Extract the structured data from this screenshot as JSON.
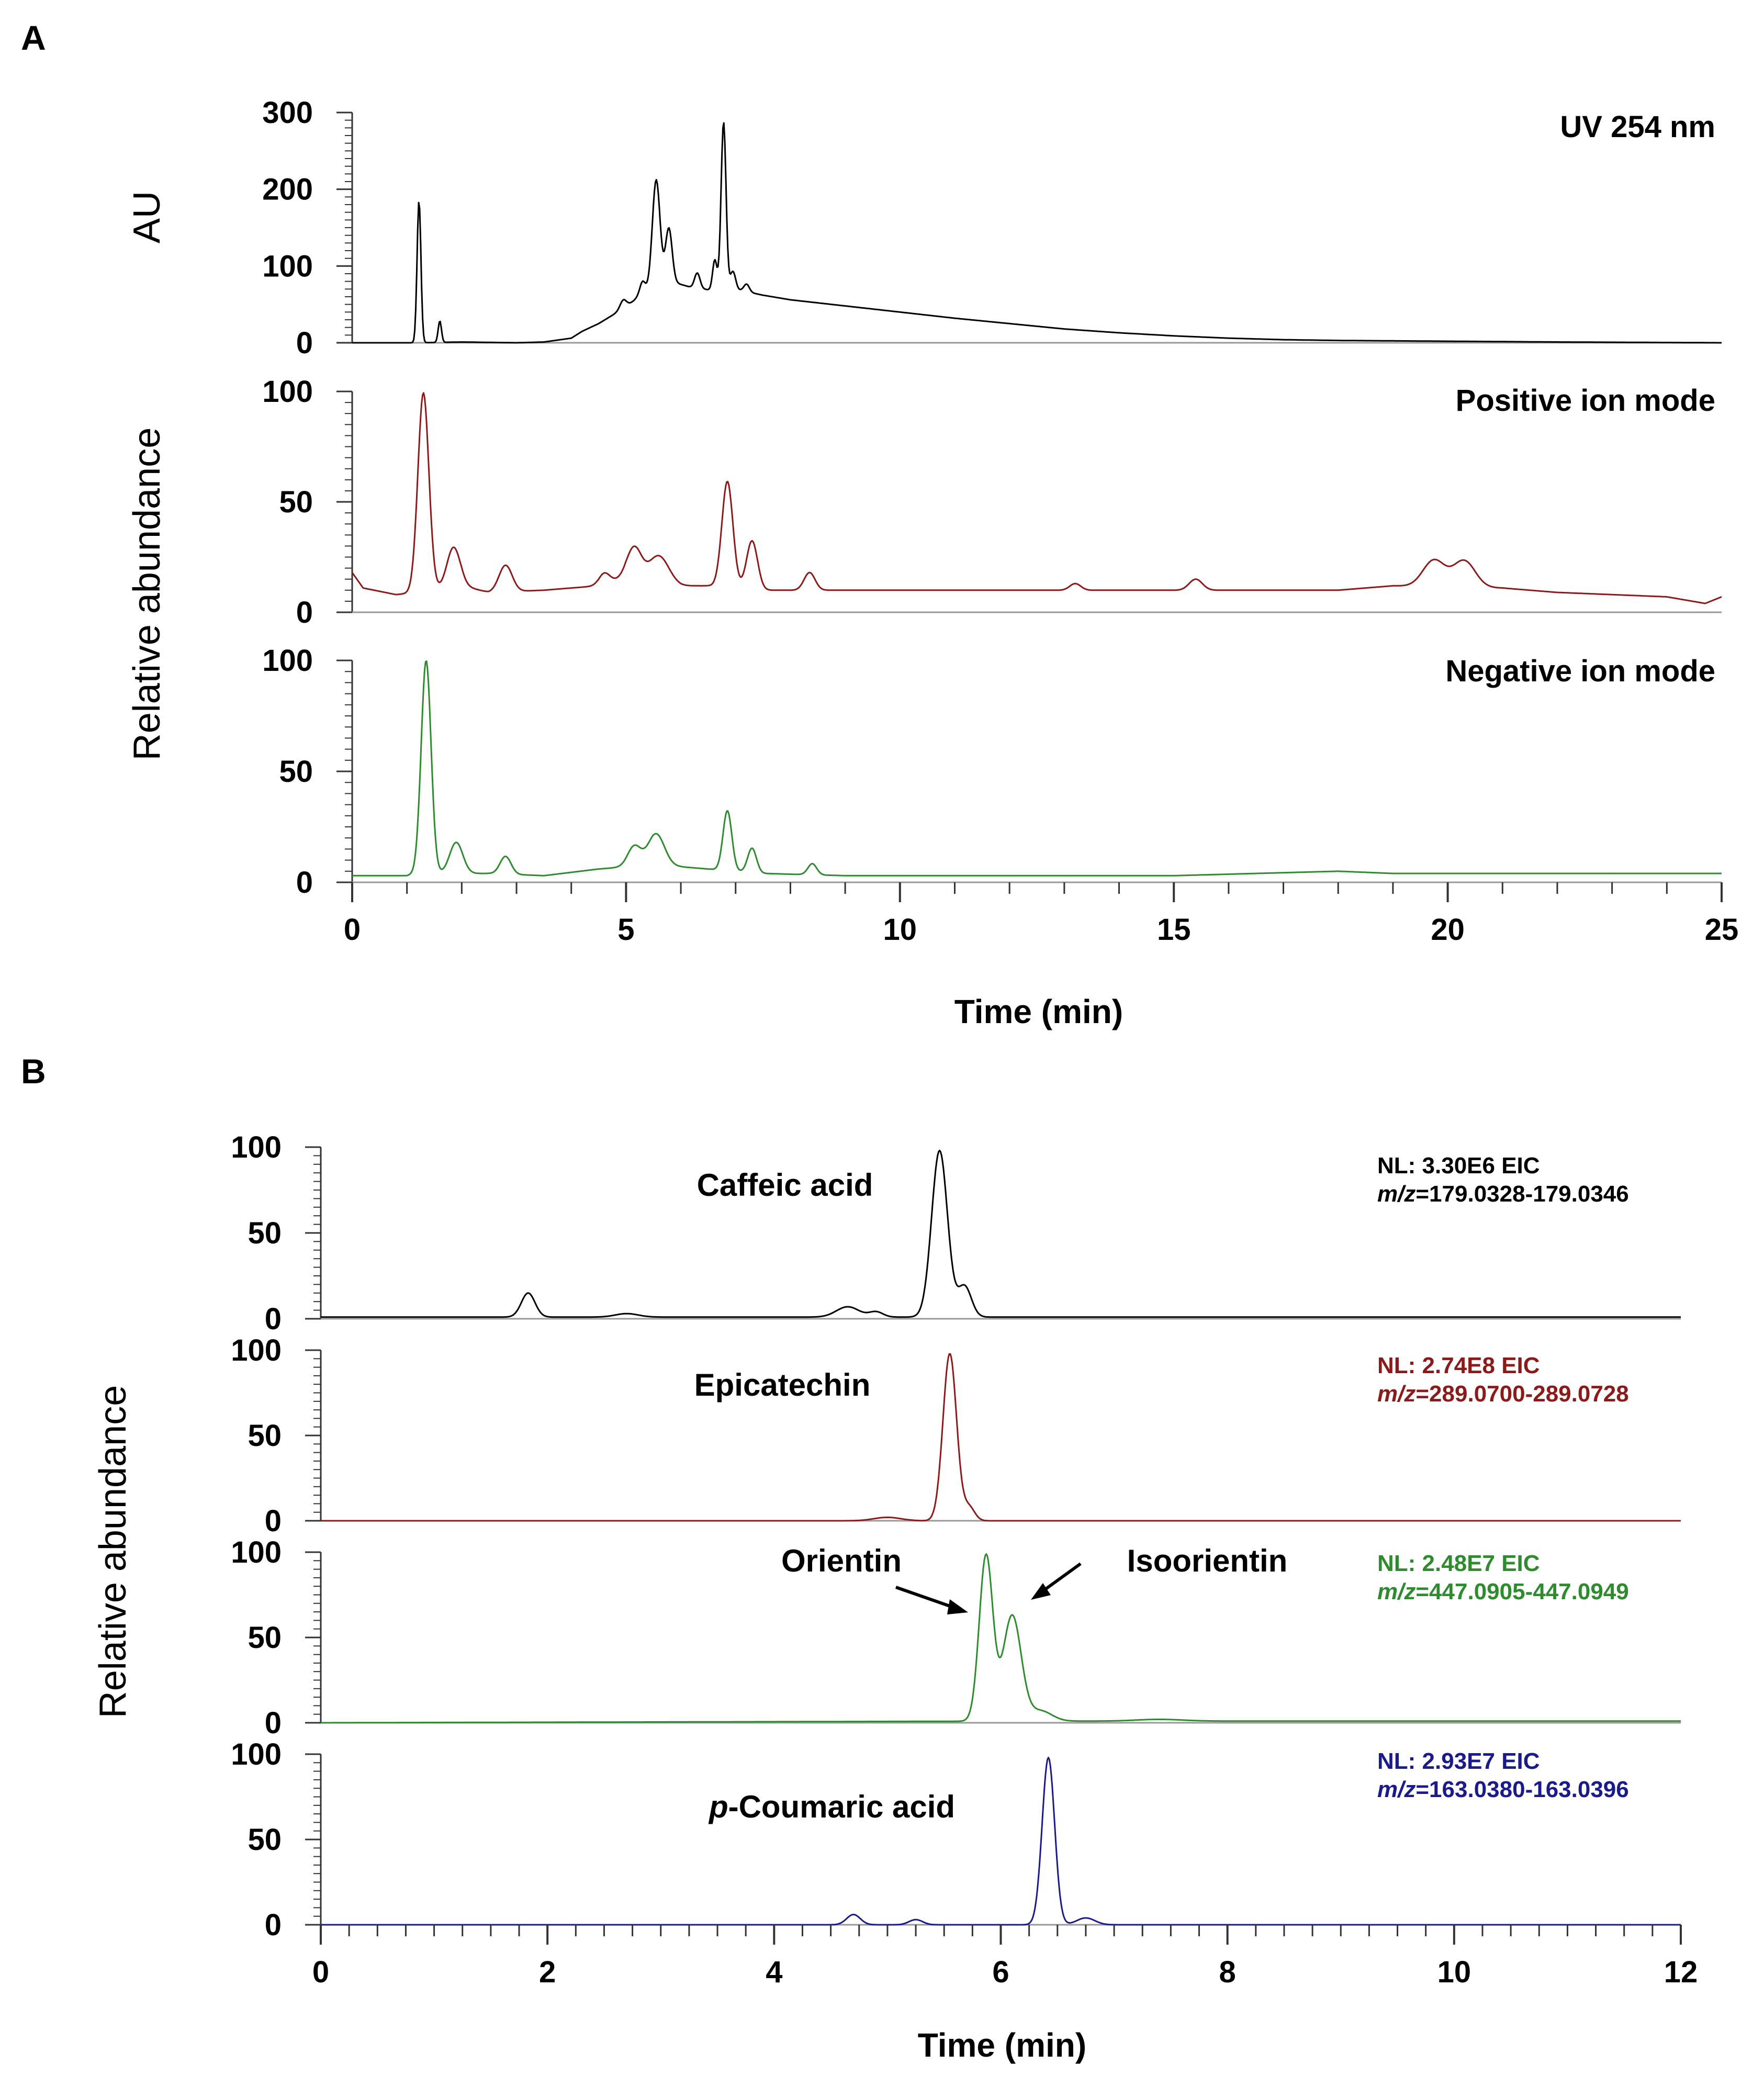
{
  "chart_data": [
    {
      "type": "line",
      "panel_label": "A",
      "xlabel": "Time (min)",
      "xlim": [
        0,
        25
      ],
      "x_ticks": [
        "0",
        "5",
        "10",
        "15",
        "20",
        "25"
      ],
      "subplots": [
        {
          "ylabel": "AU",
          "ylim": [
            0,
            300
          ],
          "y_ticks": [
            "0",
            "100",
            "200",
            "300"
          ],
          "label": "UV 254 nm",
          "color": "#000000",
          "baseline": [
            [
              0,
              0
            ],
            [
              1.15,
              0
            ],
            [
              2,
              1
            ],
            [
              3,
              0
            ],
            [
              3.5,
              1
            ],
            [
              4,
              6
            ],
            [
              4.2,
              15
            ],
            [
              4.5,
              25
            ],
            [
              4.8,
              38
            ],
            [
              5.0,
              46
            ],
            [
              5.3,
              65
            ],
            [
              5.8,
              80
            ],
            [
              6.2,
              72
            ],
            [
              6.6,
              68
            ],
            [
              7.1,
              68
            ],
            [
              7.5,
              62
            ],
            [
              8,
              56
            ],
            [
              9,
              48
            ],
            [
              10,
              40
            ],
            [
              11,
              32
            ],
            [
              12,
              25
            ],
            [
              13,
              18
            ],
            [
              14,
              13
            ],
            [
              15,
              9
            ],
            [
              16,
              6
            ],
            [
              17,
              4
            ],
            [
              18,
              3
            ],
            [
              20,
              2
            ],
            [
              22,
              1
            ],
            [
              25,
              0
            ]
          ],
          "peaks": [
            [
              1.22,
              185,
              0.035
            ],
            [
              1.6,
              28,
              0.03
            ],
            [
              4.95,
              12,
              0.06
            ],
            [
              5.3,
              15,
              0.05
            ],
            [
              5.55,
              140,
              0.07
            ],
            [
              5.78,
              70,
              0.06
            ],
            [
              6.3,
              20,
              0.05
            ],
            [
              6.62,
              40,
              0.04
            ],
            [
              6.78,
              220,
              0.045
            ],
            [
              6.95,
              25,
              0.05
            ],
            [
              7.2,
              10,
              0.05
            ]
          ]
        },
        {
          "ylabel": "Relative abundance",
          "ylim": [
            0,
            100
          ],
          "y_ticks": [
            "0",
            "50",
            "100"
          ],
          "label": "Positive ion mode",
          "color": "#8b1a1a",
          "baseline": [
            [
              0,
              18
            ],
            [
              0.2,
              11
            ],
            [
              0.8,
              8
            ],
            [
              1.2,
              9
            ],
            [
              2,
              12
            ],
            [
              2.5,
              9
            ],
            [
              3.5,
              10
            ],
            [
              4.5,
              12
            ],
            [
              5,
              16
            ],
            [
              6,
              12
            ],
            [
              6.5,
              12
            ],
            [
              7.5,
              10
            ],
            [
              9,
              10
            ],
            [
              12,
              10
            ],
            [
              15,
              10
            ],
            [
              18,
              10
            ],
            [
              19,
              12
            ],
            [
              21,
              11
            ],
            [
              22,
              9
            ],
            [
              23,
              8
            ],
            [
              24,
              7
            ],
            [
              24.7,
              4
            ],
            [
              25,
              7
            ]
          ],
          "peaks": [
            [
              1.3,
              90,
              0.1
            ],
            [
              1.85,
              18,
              0.12
            ],
            [
              2.8,
              12,
              0.12
            ],
            [
              4.6,
              5,
              0.1
            ],
            [
              5.15,
              14,
              0.13
            ],
            [
              5.6,
              12,
              0.18
            ],
            [
              6.85,
              48,
              0.1
            ],
            [
              7.3,
              22,
              0.1
            ],
            [
              8.35,
              8,
              0.1
            ],
            [
              13.2,
              3,
              0.1
            ],
            [
              15.4,
              5,
              0.12
            ],
            [
              19.75,
              12,
              0.2
            ],
            [
              20.3,
              12,
              0.2
            ]
          ]
        },
        {
          "ylabel": "Relative abundance",
          "ylim": [
            0,
            100
          ],
          "y_ticks": [
            "0",
            "50",
            "100"
          ],
          "label": "Negative ion mode",
          "color": "#2e8b2e",
          "baseline": [
            [
              0,
              3
            ],
            [
              1.0,
              3
            ],
            [
              1.2,
              4
            ],
            [
              2.5,
              4
            ],
            [
              3.5,
              3
            ],
            [
              4.5,
              6
            ],
            [
              5.5,
              8
            ],
            [
              6.5,
              6
            ],
            [
              7.5,
              4
            ],
            [
              9,
              3
            ],
            [
              15,
              3
            ],
            [
              18,
              5
            ],
            [
              19,
              4
            ],
            [
              25,
              4
            ]
          ],
          "peaks": [
            [
              1.35,
              96,
              0.09
            ],
            [
              1.9,
              14,
              0.12
            ],
            [
              2.8,
              8,
              0.1
            ],
            [
              5.15,
              9,
              0.12
            ],
            [
              5.55,
              14,
              0.15
            ],
            [
              6.85,
              27,
              0.08
            ],
            [
              7.3,
              11,
              0.08
            ],
            [
              8.4,
              5,
              0.08
            ]
          ]
        }
      ]
    },
    {
      "type": "line",
      "panel_label": "B",
      "ylabel": "Relative abundance",
      "xlabel": "Time (min)",
      "xlim": [
        0,
        12
      ],
      "x_ticks": [
        "0",
        "2",
        "4",
        "6",
        "8",
        "10",
        "12"
      ],
      "subplots": [
        {
          "ylim": [
            0,
            100
          ],
          "y_ticks": [
            "0",
            "50",
            "100"
          ],
          "compound": "Caffeic acid",
          "nl_text": "NL: 3.30E6 EIC",
          "mz_prefix": "m/z",
          "mz_value": "=179.0328-179.0346",
          "color": "#000000",
          "baseline": [
            [
              0,
              1
            ],
            [
              12,
              1
            ]
          ],
          "peaks": [
            [
              1.83,
              14,
              0.06
            ],
            [
              2.7,
              2,
              0.1
            ],
            [
              4.65,
              6,
              0.1
            ],
            [
              4.9,
              3,
              0.06
            ],
            [
              5.46,
              97,
              0.07
            ],
            [
              5.68,
              18,
              0.06
            ]
          ]
        },
        {
          "ylim": [
            0,
            100
          ],
          "y_ticks": [
            "0",
            "50",
            "100"
          ],
          "compound": "Epicatechin",
          "nl_text": "NL: 2.74E8 EIC",
          "mz_prefix": "m/z",
          "mz_value": "=289.0700-289.0728",
          "color": "#8b1a1a",
          "baseline": [
            [
              0,
              0
            ],
            [
              12,
              0
            ]
          ],
          "peaks": [
            [
              5.0,
              2,
              0.12
            ],
            [
              5.55,
              98,
              0.06
            ],
            [
              5.72,
              8,
              0.05
            ]
          ]
        },
        {
          "ylim": [
            0,
            100
          ],
          "y_ticks": [
            "0",
            "50",
            "100"
          ],
          "compound": "Orientin",
          "compound2": "Isoorientin",
          "nl_text": "NL: 2.48E7 EIC",
          "mz_prefix": "m/z",
          "mz_value": "=447.0905-447.0949",
          "color": "#2e8b2e",
          "baseline": [
            [
              0,
              0
            ],
            [
              6.4,
              1
            ],
            [
              12,
              1
            ]
          ],
          "peaks": [
            [
              5.87,
              97,
              0.06
            ],
            [
              6.1,
              62,
              0.08
            ],
            [
              6.35,
              6,
              0.1
            ],
            [
              7.4,
              1,
              0.2
            ]
          ]
        },
        {
          "ylim": [
            0,
            100
          ],
          "y_ticks": [
            "0",
            "50",
            "100"
          ],
          "compound_prefix": "p",
          "compound": "-Coumaric acid",
          "nl_text": "NL: 2.93E7 EIC",
          "mz_prefix": "m/z",
          "mz_value": "=163.0380-163.0396",
          "color": "#1a1a8b",
          "baseline": [
            [
              0,
              0
            ],
            [
              12,
              0
            ]
          ],
          "peaks": [
            [
              4.7,
              6,
              0.06
            ],
            [
              5.25,
              3,
              0.06
            ],
            [
              6.42,
              98,
              0.055
            ],
            [
              6.75,
              4,
              0.08
            ]
          ]
        }
      ]
    }
  ]
}
